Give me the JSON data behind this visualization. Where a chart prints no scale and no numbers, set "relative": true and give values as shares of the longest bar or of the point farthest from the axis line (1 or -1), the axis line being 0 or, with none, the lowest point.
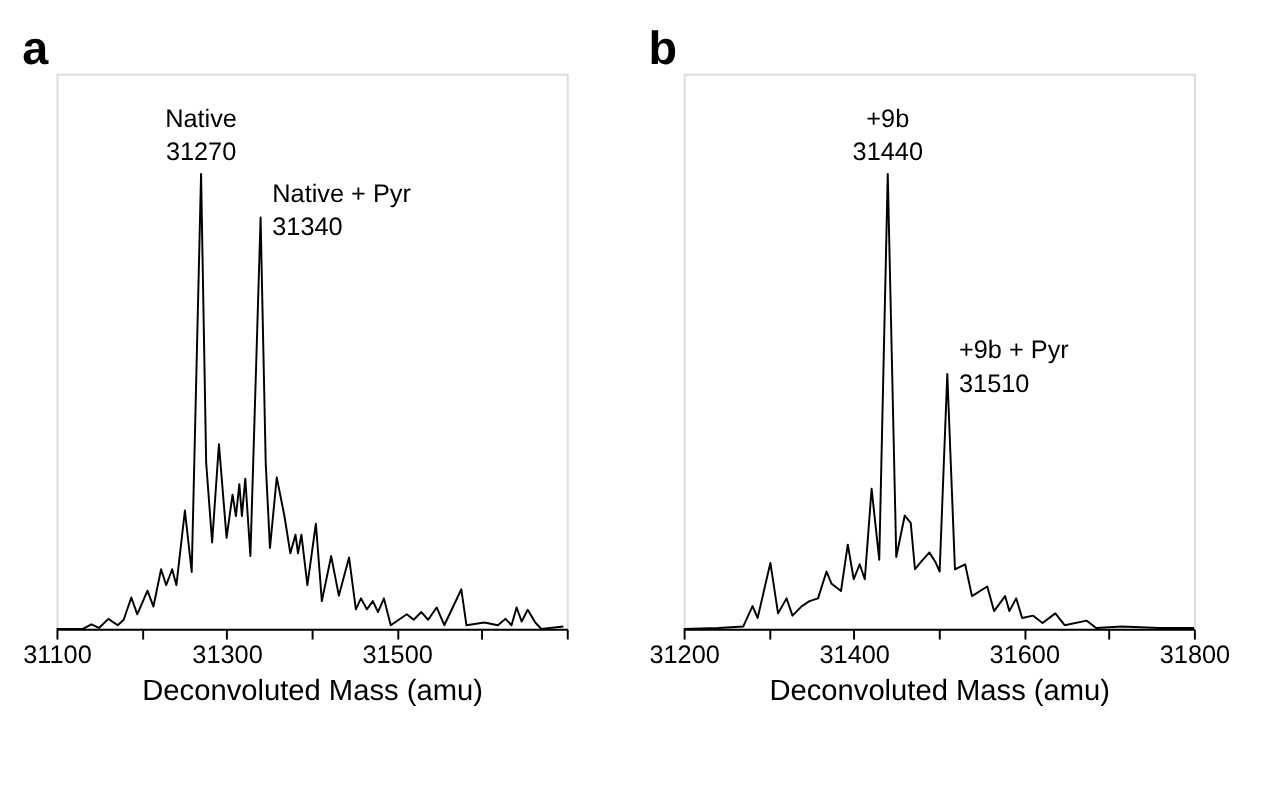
{
  "chart_data": [
    {
      "type": "line",
      "title": "a",
      "xlabel": "Deconvoluted Mass (amu)",
      "relative": true,
      "marker": "none",
      "line_style": "solid",
      "grid": false,
      "legend": false,
      "tick_labels": "x",
      "xlim": [
        31100,
        31700
      ],
      "xticks": [
        31100,
        {
          "value": 31200,
          "label": null
        },
        31300,
        {
          "value": 31400,
          "label": null
        },
        31500,
        {
          "value": 31600,
          "label": null
        },
        {
          "value": 31700,
          "label": null
        }
      ],
      "series": [
        {
          "color": "#000000",
          "x": [
            31100,
            31131,
            31141,
            31150,
            31161,
            31172,
            31179,
            31188,
            31195,
            31207,
            31214,
            31223,
            31229,
            31236,
            31241,
            31251,
            31259,
            31270,
            31276,
            31283,
            31291,
            31300,
            31307,
            31311,
            31315,
            31318,
            31322,
            31328,
            31340,
            31346,
            31351,
            31359,
            31368,
            31375,
            31381,
            31384,
            31388,
            31395,
            31405,
            31412,
            31423,
            31432,
            31444,
            31452,
            31458,
            31465,
            31472,
            31478,
            31485,
            31493,
            31512,
            31520,
            31529,
            31537,
            31547,
            31556,
            31576,
            31582,
            31603,
            31619,
            31628,
            31635,
            31641,
            31647,
            31654,
            31663,
            31670,
            31696
          ],
          "values": [
            0,
            0,
            0.01,
            0.002,
            0.022,
            0.008,
            0.02,
            0.069,
            0.032,
            0.084,
            0.049,
            0.131,
            0.096,
            0.131,
            0.096,
            0.26,
            0.125,
            1,
            0.365,
            0.19,
            0.406,
            0.2,
            0.295,
            0.248,
            0.318,
            0.248,
            0.33,
            0.16,
            0.904,
            0.365,
            0.178,
            0.333,
            0.248,
            0.166,
            0.207,
            0.166,
            0.207,
            0.096,
            0.231,
            0.061,
            0.16,
            0.073,
            0.157,
            0.043,
            0.067,
            0.043,
            0.061,
            0.037,
            0.067,
            0.008,
            0.032,
            0.02,
            0.037,
            0.02,
            0.047,
            0.008,
            0.087,
            0.008,
            0.014,
            0.008,
            0.022,
            0.008,
            0.047,
            0.016,
            0.042,
            0.014,
            0,
            0.005
          ]
        }
      ],
      "annotations": [
        {
          "text": "Native\n31270",
          "x": 31270,
          "y": 1
        },
        {
          "text": "Native + Pyr\n31340",
          "x": 31340,
          "y": 0.904
        }
      ]
    },
    {
      "type": "line",
      "title": "b",
      "xlabel": "Deconvoluted Mass (amu)",
      "relative": true,
      "marker": "none",
      "line_style": "solid",
      "grid": false,
      "legend": false,
      "tick_labels": "x",
      "xlim": [
        31200,
        31800
      ],
      "xticks": [
        31200,
        {
          "value": 31300,
          "label": null
        },
        31400,
        {
          "value": 31500,
          "label": null
        },
        31600,
        {
          "value": 31700,
          "label": null
        },
        31800
      ],
      "series": [
        {
          "color": "#000000",
          "x": [
            31200,
            31241,
            31270,
            31281,
            31287,
            31302,
            31311,
            31321,
            31328,
            31339,
            31348,
            31358,
            31368,
            31374,
            31385,
            31393,
            31400,
            31407,
            31413,
            31421,
            31430,
            31440,
            31450,
            31460,
            31467,
            31472,
            31479,
            31489,
            31496,
            31501,
            31510,
            31519,
            31531,
            31539,
            31557,
            31565,
            31578,
            31583,
            31591,
            31598,
            31611,
            31622,
            31637,
            31648,
            31674,
            31685,
            31715,
            31759,
            31800
          ],
          "values": [
            0,
            0.002,
            0.005,
            0.05,
            0.024,
            0.145,
            0.034,
            0.067,
            0.029,
            0.05,
            0.061,
            0.067,
            0.126,
            0.099,
            0.083,
            0.185,
            0.109,
            0.142,
            0.109,
            0.308,
            0.152,
            1,
            0.158,
            0.249,
            0.233,
            0.131,
            0.147,
            0.168,
            0.147,
            0.126,
            0.56,
            0.131,
            0.142,
            0.072,
            0.093,
            0.039,
            0.072,
            0.039,
            0.067,
            0.024,
            0.029,
            0.013,
            0.034,
            0.008,
            0.018,
            0.002,
            0.005,
            0.002,
            0.002
          ]
        }
      ],
      "annotations": [
        {
          "text": "+9b\n31440",
          "x": 31440,
          "y": 1
        },
        {
          "text": "+9b + Pyr\n31510",
          "x": 31510,
          "y": 0.56
        }
      ]
    }
  ]
}
